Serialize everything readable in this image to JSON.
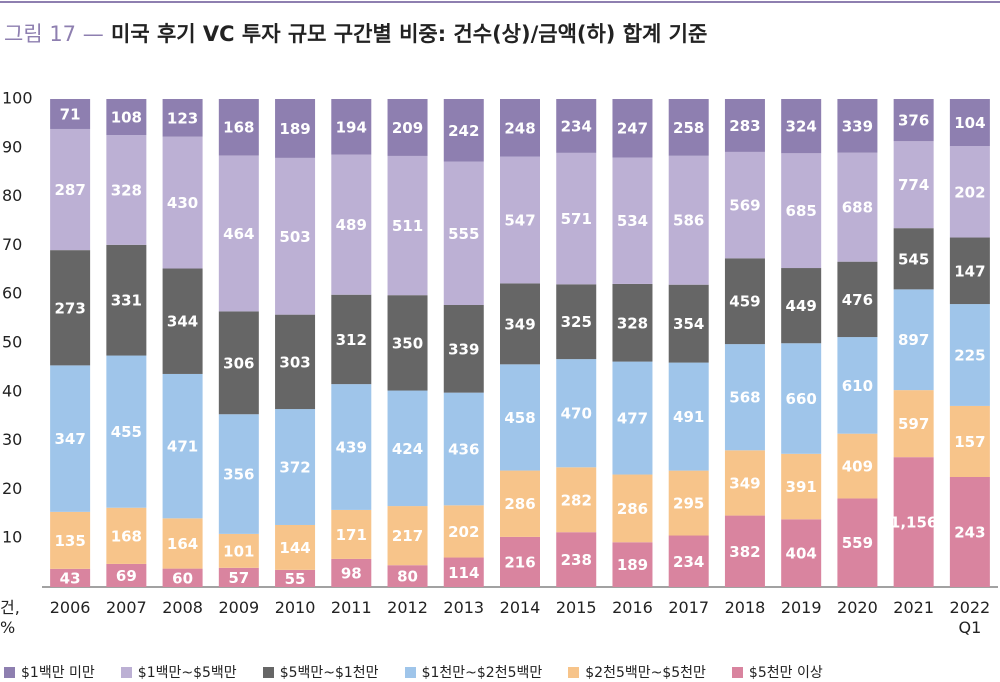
{
  "chart_data": {
    "type": "stacked_percent_bar",
    "figure_label": "그림 17 —",
    "title": "미국 후기 VC 투자 규모 구간별 비중: 건수(상)/금액(하) 합계 기준",
    "y_label": "건,\n%",
    "categories": [
      "2006",
      "2007",
      "2008",
      "2009",
      "2010",
      "2011",
      "2012",
      "2013",
      "2014",
      "2015",
      "2016",
      "2017",
      "2018",
      "2019",
      "2020",
      "2021",
      "2022\nQ1"
    ],
    "ylim": [
      0,
      100
    ],
    "yticks": [
      10,
      20,
      30,
      40,
      50,
      60,
      70,
      80,
      90,
      100
    ],
    "series": [
      {
        "name": "$1백만 미만",
        "color": "#8e7fb0",
        "values": [
          71,
          108,
          123,
          168,
          189,
          194,
          209,
          242,
          248,
          234,
          247,
          258,
          283,
          324,
          339,
          376,
          104
        ]
      },
      {
        "name": "$1백만~$5백만",
        "color": "#bcb0d4",
        "values": [
          287,
          328,
          430,
          464,
          503,
          489,
          511,
          555,
          547,
          571,
          534,
          586,
          569,
          685,
          688,
          774,
          202
        ]
      },
      {
        "name": "$5백만~$1천만",
        "color": "#666666",
        "values": [
          273,
          331,
          344,
          306,
          303,
          312,
          350,
          339,
          349,
          325,
          328,
          354,
          459,
          449,
          476,
          545,
          147
        ]
      },
      {
        "name": "$1천만~$2천5백만",
        "color": "#9fc5ea",
        "values": [
          347,
          455,
          471,
          356,
          372,
          439,
          424,
          436,
          458,
          470,
          477,
          491,
          568,
          660,
          610,
          897,
          225
        ]
      },
      {
        "name": "$2천5백만~$5천만",
        "color": "#f7c48a",
        "values": [
          135,
          168,
          164,
          101,
          144,
          171,
          217,
          202,
          286,
          282,
          286,
          295,
          349,
          391,
          409,
          597,
          157
        ]
      },
      {
        "name": "$5천만 이상",
        "color": "#d9849f",
        "values": [
          43,
          69,
          60,
          57,
          55,
          98,
          80,
          114,
          216,
          238,
          189,
          234,
          382,
          404,
          559,
          1156,
          243
        ],
        "value_labels": [
          "43",
          "69",
          "60",
          "57",
          "55",
          "98",
          "80",
          "114",
          "216",
          "238",
          "189",
          "234",
          "382",
          "404",
          "559",
          "1,156",
          "243"
        ]
      }
    ]
  }
}
